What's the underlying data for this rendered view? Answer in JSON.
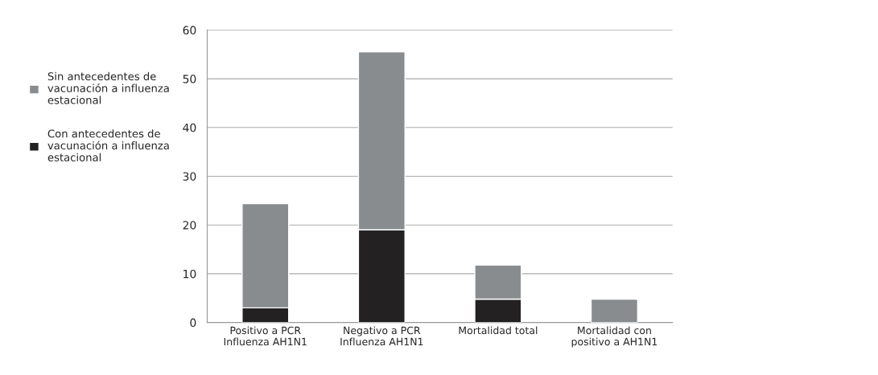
{
  "chart_data": {
    "type": "bar",
    "stacked": true,
    "categories": [
      "Positivo a PCR Influenza AH1N1",
      "Negativo a PCR Influenza AH1N1",
      "Mortalidad total",
      "Mortalidad con positivo a AH1N1"
    ],
    "series": [
      {
        "name": "Con antecedentes de vacunación a influenza estacional",
        "color": "#232122",
        "values": [
          3,
          19,
          4.8,
          0
        ]
      },
      {
        "name": "Sin antecedentes de vacunación a influenza estacional",
        "color": "#898c8e",
        "values": [
          21.4,
          36.5,
          7,
          4.8
        ]
      }
    ],
    "ylim": [
      0,
      60
    ],
    "yticks": [
      0,
      10,
      20,
      30,
      40,
      50,
      60
    ],
    "grid": "y",
    "legend": "left"
  }
}
